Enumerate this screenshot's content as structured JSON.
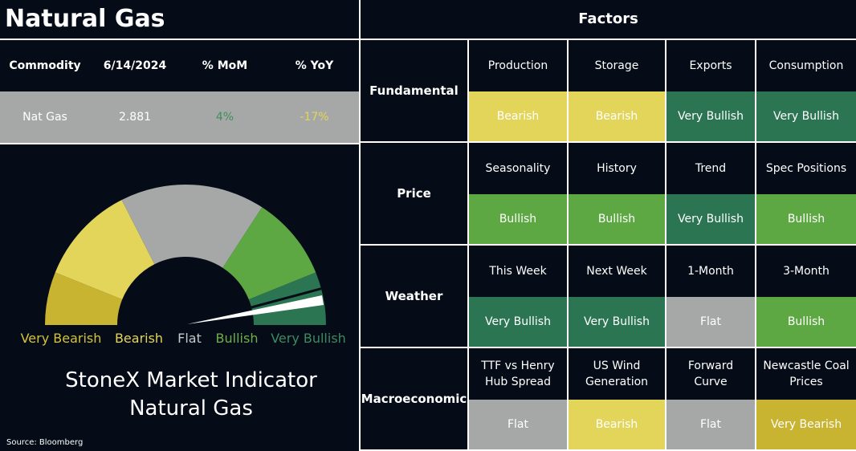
{
  "header": {
    "title": "Natural Gas",
    "factors_title": "Factors"
  },
  "summary": {
    "columns": [
      "Commodity",
      "6/14/2024",
      "% MoM",
      "% YoY"
    ],
    "row": [
      "Nat Gas",
      "2.881",
      "4%",
      "-17%"
    ],
    "row_colors": [
      "#ffffff",
      "#ffffff",
      "#3f8f5a",
      "#e3d55a"
    ]
  },
  "gauge": {
    "labels": [
      "Very Bearish",
      "Bearish",
      "Flat",
      "Bullish",
      "Very Bullish"
    ],
    "colors": [
      "#c8b430",
      "#e3d55a",
      "#a6a8a7",
      "#5ea843",
      "#2b7553"
    ],
    "label_colors": [
      "#d4c23b",
      "#e3d55a",
      "#c8c8c8",
      "#6bb04b",
      "#3d8a60"
    ],
    "title": [
      "StoneX Market Indicator",
      "Natural Gas"
    ]
  },
  "source": "Source: Bloomberg",
  "rating_colors": {
    "Very Bearish": "#c8b430",
    "Bearish": "#e3d55a",
    "Flat": "#a6a8a7",
    "Bullish": "#5ea843",
    "Very Bullish": "#2b7553"
  },
  "groups": [
    {
      "name": "Fundamental",
      "factors": [
        {
          "label": "Production",
          "rating": "Bearish"
        },
        {
          "label": "Storage",
          "rating": "Bearish"
        },
        {
          "label": "Exports",
          "rating": "Very Bullish"
        },
        {
          "label": "Consumption",
          "rating": "Very Bullish"
        }
      ]
    },
    {
      "name": "Price",
      "factors": [
        {
          "label": "Seasonality",
          "rating": "Bullish"
        },
        {
          "label": "History",
          "rating": "Bullish"
        },
        {
          "label": "Trend",
          "rating": "Very Bullish"
        },
        {
          "label": "Spec Positions",
          "rating": "Bullish"
        }
      ]
    },
    {
      "name": "Weather",
      "factors": [
        {
          "label": "This Week",
          "rating": "Very Bullish"
        },
        {
          "label": "Next Week",
          "rating": "Very Bullish"
        },
        {
          "label": "1-Month",
          "rating": "Flat"
        },
        {
          "label": "3-Month",
          "rating": "Bullish"
        }
      ]
    },
    {
      "name": "Macroeconomic",
      "factors": [
        {
          "label": "TTF vs Henry Hub Spread",
          "rating": "Flat"
        },
        {
          "label": "US Wind Generation",
          "rating": "Bearish"
        },
        {
          "label": "Forward Curve",
          "rating": "Flat"
        },
        {
          "label": "Newcastle Coal Prices",
          "rating": "Very Bearish"
        }
      ]
    }
  ]
}
